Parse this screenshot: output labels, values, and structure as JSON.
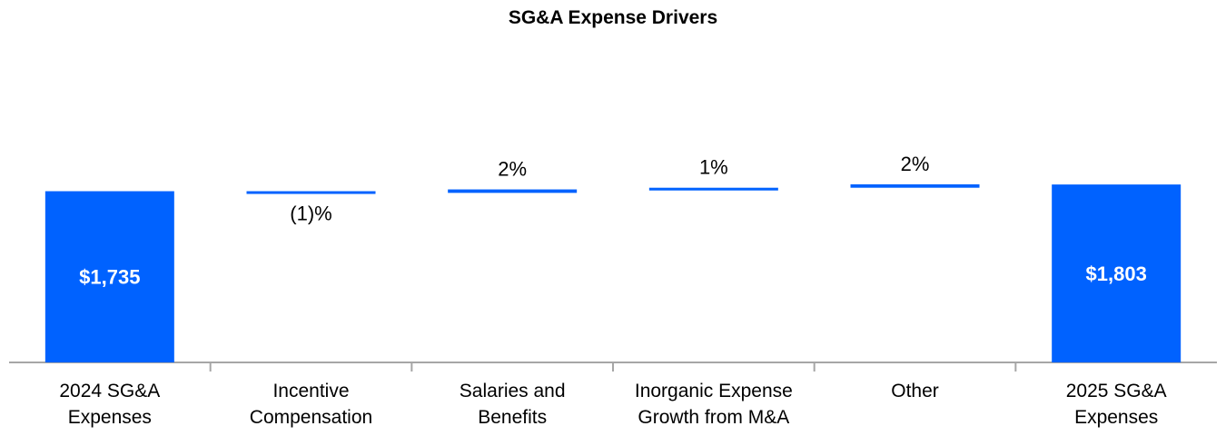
{
  "chart_data": {
    "type": "bar",
    "subtype": "waterfall",
    "title": "SG&A Expense Drivers",
    "xlabel": "",
    "ylabel": "",
    "categories": [
      [
        "2024 SG&A",
        "Expenses"
      ],
      [
        "Incentive",
        "Compensation"
      ],
      [
        "Salaries and",
        "Benefits"
      ],
      [
        "Inorganic Expense",
        "Growth from M&A"
      ],
      [
        "Other"
      ],
      [
        "2025 SG&A",
        "Expenses"
      ]
    ],
    "values": [
      1735,
      -17,
      35,
      17,
      35,
      1803
    ],
    "bar_kinds": [
      "total",
      "delta",
      "delta",
      "delta",
      "delta",
      "total"
    ],
    "labels": [
      "$1,735",
      "(1)%",
      "2%",
      "1%",
      "2%",
      "$1,803"
    ],
    "grid": false,
    "legend": "none",
    "colors": {
      "bar": "#0062FF",
      "axis": "#A6A6A6"
    }
  }
}
